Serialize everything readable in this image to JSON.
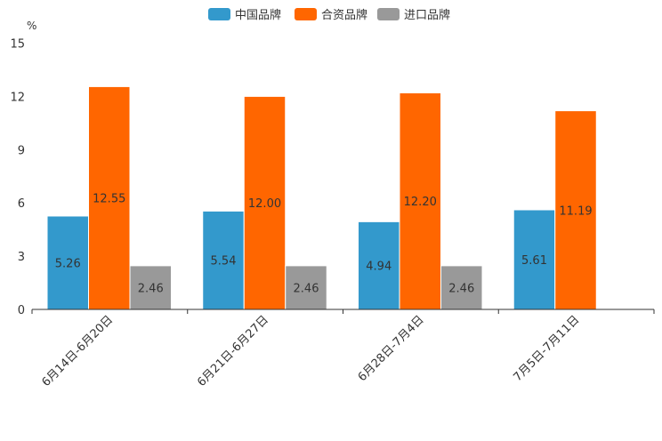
{
  "chart_data": {
    "type": "bar",
    "title": "",
    "xlabel": "",
    "ylabel": "%",
    "ylim": [
      0,
      15
    ],
    "yticks": [
      "0",
      "3",
      "6",
      "9",
      "12",
      "15"
    ],
    "grid": false,
    "legend_position": "top-center",
    "categories": [
      "6月14日-6月20日",
      "6月21日-6月27日",
      "6月28日-7月4日",
      "7月5日-7月11日"
    ],
    "series": [
      {
        "name": "中国品牌",
        "color": "#3399cc",
        "values": [
          5.26,
          5.54,
          4.94,
          5.61
        ],
        "labels": [
          "5.26",
          "5.54",
          "4.94",
          "5.61"
        ]
      },
      {
        "name": "合资品牌",
        "color": "#ff6600",
        "values": [
          12.55,
          12.0,
          12.2,
          11.19
        ],
        "labels": [
          "12.55",
          "12.00",
          "12.20",
          "11.19"
        ]
      },
      {
        "name": "进口品牌",
        "color": "#999999",
        "values": [
          2.46,
          2.46,
          2.46,
          null
        ],
        "labels": [
          "2.46",
          "2.46",
          "2.46",
          null
        ]
      }
    ]
  }
}
